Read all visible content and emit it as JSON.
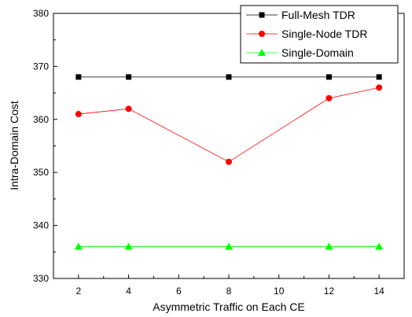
{
  "chart_data": {
    "type": "line",
    "title": "",
    "xlabel": "Asymmetric Traffic on Each CE",
    "ylabel": "Intra-Domain Cost",
    "xlim": [
      1,
      15
    ],
    "ylim": [
      330,
      380
    ],
    "xticks": [
      2,
      4,
      6,
      8,
      10,
      12,
      14
    ],
    "yticks": [
      330,
      340,
      350,
      360,
      370,
      380
    ],
    "grid": false,
    "legend_position": "top-right",
    "x": [
      2,
      4,
      8,
      12,
      14
    ],
    "series": [
      {
        "name": "Full-Mesh TDR",
        "values": [
          368,
          368,
          368,
          368,
          368
        ],
        "color": "#000000",
        "marker": "square"
      },
      {
        "name": "Single-Node TDR",
        "values": [
          361,
          362,
          352,
          364,
          366
        ],
        "color": "#ff0000",
        "marker": "circle"
      },
      {
        "name": "Single-Domain",
        "values": [
          336,
          336,
          336,
          336,
          336
        ],
        "color": "#00ff00",
        "marker": "triangle"
      }
    ]
  }
}
